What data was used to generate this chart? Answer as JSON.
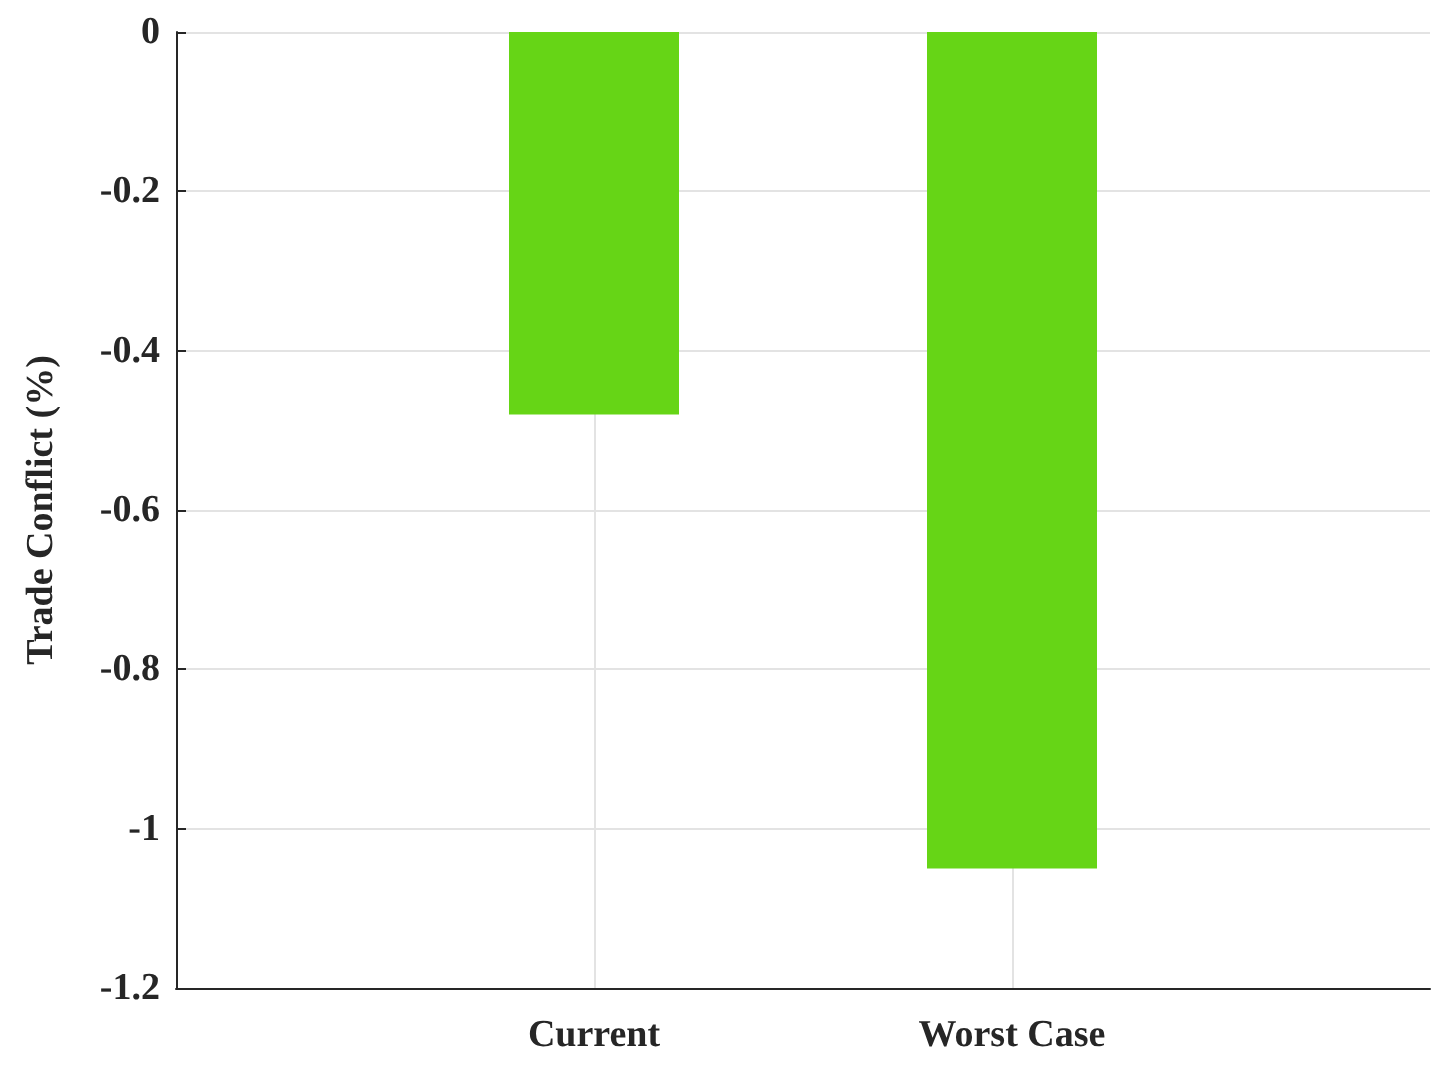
{
  "chart_data": {
    "type": "bar",
    "ylabel": "Trade Conflict (%)",
    "categories": [
      "Current",
      "Worst Case"
    ],
    "values": [
      -0.48,
      -1.05
    ],
    "color": "#66d516",
    "ylim": [
      -1.2,
      0
    ],
    "yticks": [
      -1.2,
      -1,
      -0.8,
      -0.6,
      -0.4,
      -0.2,
      0
    ],
    "grid": true
  }
}
